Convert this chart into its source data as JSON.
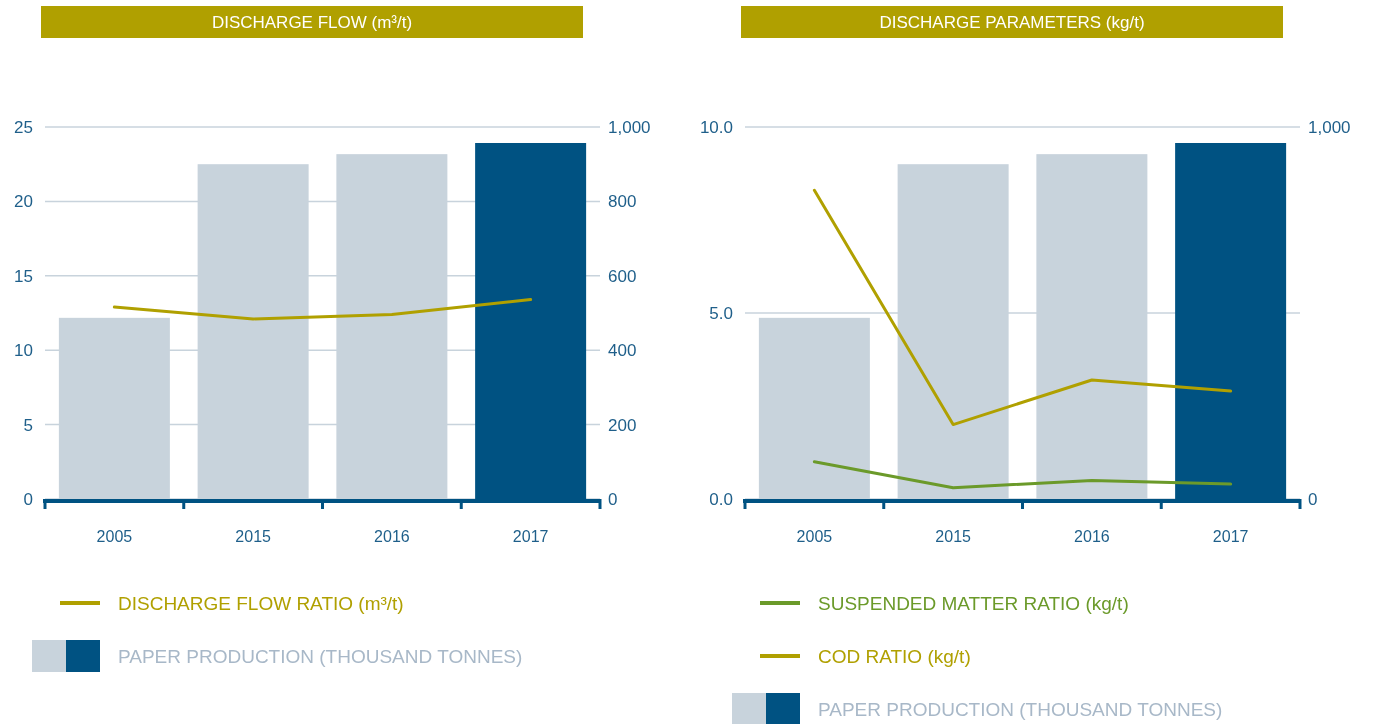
{
  "chart_data": [
    {
      "type": "line",
      "title": "DISCHARGE FLOW (m³/t)",
      "categories": [
        "2005",
        "2015",
        "2016",
        "2017"
      ],
      "ylim": [
        0,
        25
      ],
      "yticks": [
        0,
        5,
        10,
        15,
        20,
        25
      ],
      "y2lim": [
        0,
        1000
      ],
      "y2ticks": [
        0,
        200,
        400,
        600,
        800,
        {
          "value": 1000,
          "label": "1,000"
        }
      ],
      "grid": "y",
      "legend": "bottom",
      "marker": "none",
      "line_style": "solid",
      "series": [
        {
          "name": "DISCHARGE FLOW RATIO  (m³/t)",
          "color": "#b0a000",
          "values": [
            12.9,
            12.1,
            12.4,
            13.4
          ]
        },
        {
          "name": "PAPER PRODUCTION (THOUSAND TONNES)",
          "type": "bar",
          "axis": "y2",
          "color": "#c8d3dc",
          "colors": [
            "#c8d3dc",
            "#c8d3dc",
            "#c8d3dc",
            "#005282"
          ],
          "values": [
            487,
            900,
            927,
            957
          ]
        }
      ]
    },
    {
      "type": "line",
      "title": "DISCHARGE PARAMETERS (kg/t)",
      "categories": [
        "2005",
        "2015",
        "2016",
        "2017"
      ],
      "ylim": [
        0,
        10
      ],
      "yticks": [
        {
          "value": 0,
          "label": "0.0"
        },
        {
          "value": 5,
          "label": "5.0"
        },
        {
          "value": 10,
          "label": "10.0"
        }
      ],
      "y2lim": [
        0,
        1000
      ],
      "y2ticks": [
        0,
        {
          "value": 1000,
          "label": "1,000"
        }
      ],
      "grid": "y",
      "legend": "bottom",
      "marker": "none",
      "line_style": "solid",
      "series": [
        {
          "name": "SUSPENDED MATTER RATIO  (kg/t)",
          "color": "#6b9a2a",
          "values": [
            1.0,
            0.3,
            0.5,
            0.4
          ]
        },
        {
          "name": "COD RATIO  (kg/t)",
          "color": "#b0a000",
          "values": [
            8.3,
            2.0,
            3.2,
            2.9
          ]
        },
        {
          "name": "PAPER PRODUCTION (THOUSAND TONNES)",
          "type": "bar",
          "axis": "y2",
          "color": "#c8d3dc",
          "colors": [
            "#c8d3dc",
            "#c8d3dc",
            "#c8d3dc",
            "#005282"
          ],
          "values": [
            487,
            900,
            927,
            957
          ]
        }
      ]
    }
  ]
}
